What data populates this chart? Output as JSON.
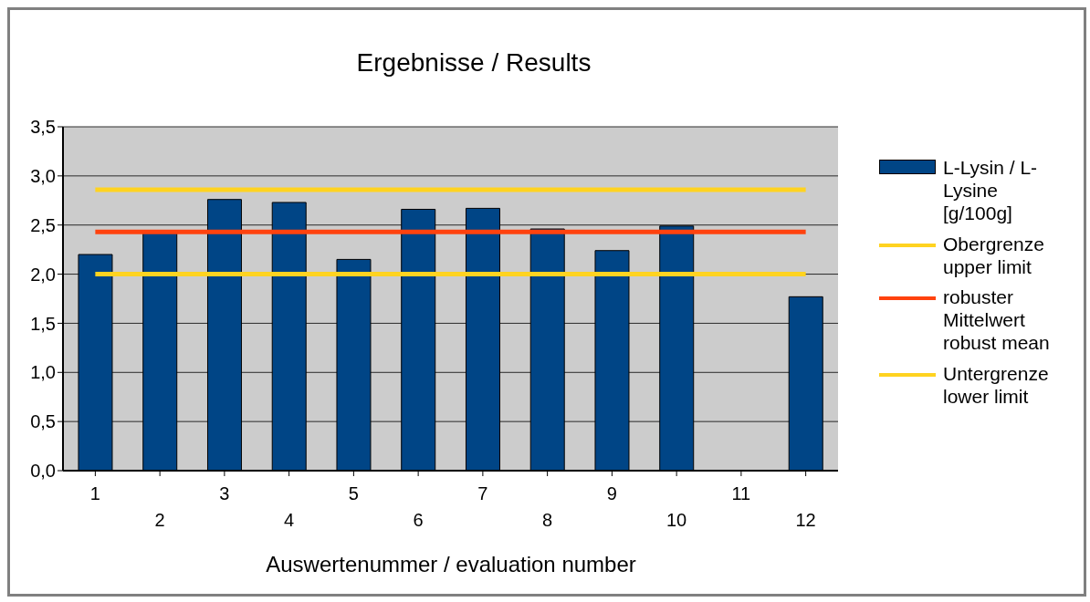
{
  "chart_data": {
    "type": "bar",
    "title": "Ergebnisse / Results",
    "xlabel": "Auswertenummer / evaluation number",
    "categories": [
      "1",
      "2",
      "3",
      "4",
      "5",
      "6",
      "7",
      "8",
      "9",
      "10",
      "11",
      "12"
    ],
    "series": [
      {
        "name": "L-Lysin / L-Lysine [g/100g]",
        "color": "#004586",
        "values": [
          2.2,
          2.43,
          2.76,
          2.73,
          2.15,
          2.66,
          2.67,
          2.46,
          2.24,
          2.49,
          null,
          1.77
        ]
      },
      {
        "name": "Obergrenze upper limit",
        "type": "line",
        "color": "#ffd320",
        "values": [
          2.86,
          2.86,
          2.86,
          2.86,
          2.86,
          2.86,
          2.86,
          2.86,
          2.86,
          2.86,
          2.86,
          2.86
        ]
      },
      {
        "name": "robuster Mittelwert robust mean",
        "type": "line",
        "color": "#ff420e",
        "values": [
          2.43,
          2.43,
          2.43,
          2.43,
          2.43,
          2.43,
          2.43,
          2.43,
          2.43,
          2.43,
          2.43,
          2.43
        ]
      },
      {
        "name": "Untergrenze lower limit",
        "type": "line",
        "color": "#ffd320",
        "values": [
          2.0,
          2.0,
          2.0,
          2.0,
          2.0,
          2.0,
          2.0,
          2.0,
          2.0,
          2.0,
          2.0,
          2.0
        ]
      }
    ],
    "ylim": [
      0,
      3.5
    ],
    "yticks": [
      {
        "value": 0,
        "label": "0,0"
      },
      {
        "value": 0.5,
        "label": "0,5"
      },
      {
        "value": 1,
        "label": "1,0"
      },
      {
        "value": 1.5,
        "label": "1,5"
      },
      {
        "value": 2,
        "label": "2,0"
      },
      {
        "value": 2.5,
        "label": "2,5"
      },
      {
        "value": 3,
        "label": "3,0"
      },
      {
        "value": 3.5,
        "label": "3,5"
      }
    ],
    "grid": "y",
    "legend": "right",
    "marker": "none",
    "line_style": "solid"
  }
}
